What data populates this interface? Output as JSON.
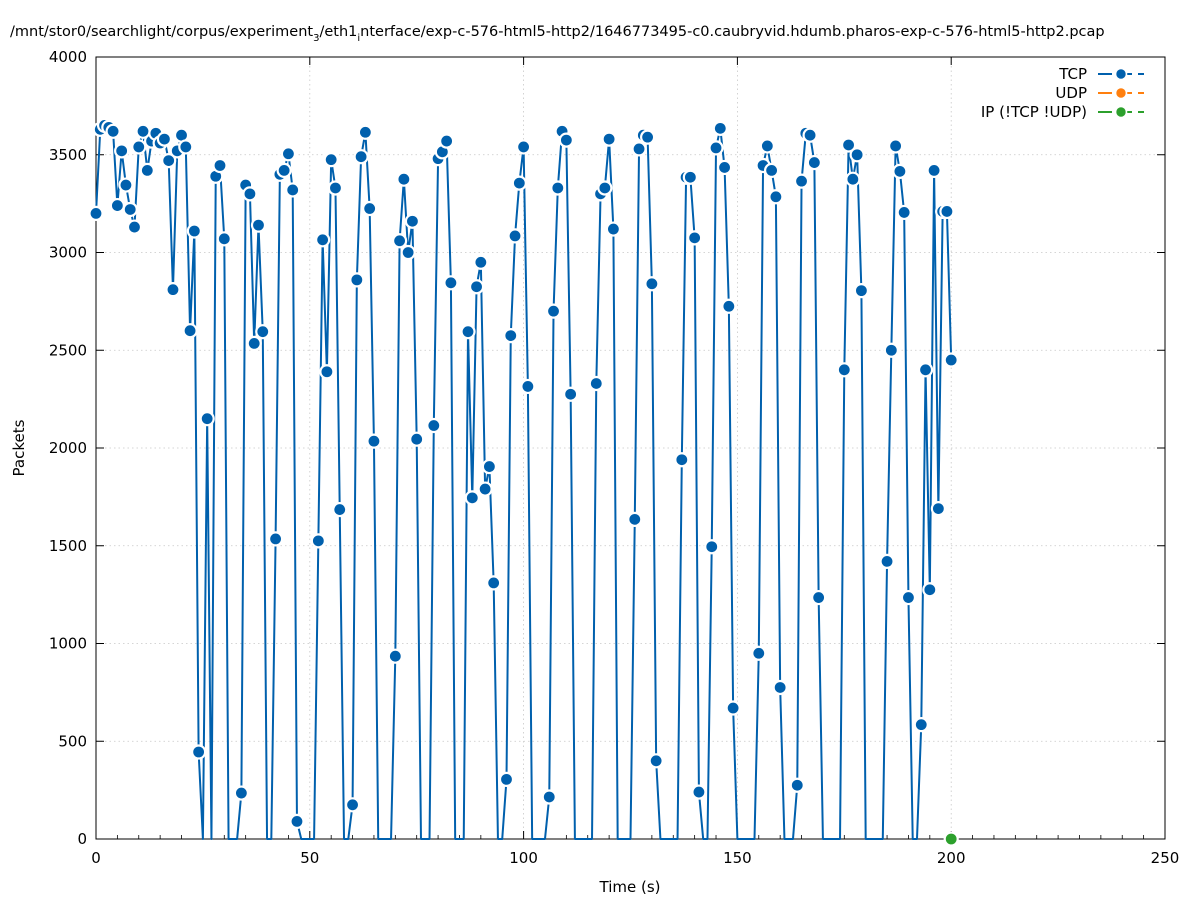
{
  "chart_data": {
    "type": "line",
    "title": "/mnt/stor0/searchlight/corpus/experiment_3/eth1_interface/exp-c-576-html5-http2/1646773495-c0.caubryvid.hdumb.pharos-exp-c-576-html5-http2.pcap",
    "title_parts": {
      "p1": "/mnt/stor0/searchlight/corpus/experiment",
      "sub1": "3",
      "p2": "/eth1",
      "sub2": "i",
      "p3": "nterface/exp-c-576-html5-http2/1646773495-c0.caubryvid.hdumb.pharos-exp-c-576-html5-http2.pcap"
    },
    "xlabel": "Time (s)",
    "ylabel": "Packets",
    "xlim": [
      0,
      250
    ],
    "ylim": [
      0,
      4000
    ],
    "xticks": [
      "0",
      "50",
      "100",
      "150",
      "200",
      "250"
    ],
    "yticks": [
      "0",
      "500",
      "1000",
      "1500",
      "2000",
      "2500",
      "3000",
      "3500",
      "4000"
    ],
    "grid": true,
    "legend_position": "top-right",
    "series": [
      {
        "name": "TCP",
        "color": "#0060ad",
        "values": [
          [
            0,
            3200
          ],
          [
            1,
            3630
          ],
          [
            2,
            3650
          ],
          [
            3,
            3640
          ],
          [
            4,
            3620
          ],
          [
            5,
            3240
          ],
          [
            6,
            3520
          ],
          [
            7,
            3345
          ],
          [
            8,
            3220
          ],
          [
            9,
            3130
          ],
          [
            10,
            3540
          ],
          [
            11,
            3620
          ],
          [
            12,
            3420
          ],
          [
            13,
            3570
          ],
          [
            14,
            3610
          ],
          [
            15,
            3560
          ],
          [
            16,
            3580
          ],
          [
            17,
            3470
          ],
          [
            18,
            2810
          ],
          [
            19,
            3520
          ],
          [
            20,
            3600
          ],
          [
            21,
            3540
          ],
          [
            22,
            2600
          ],
          [
            23,
            3110
          ],
          [
            24,
            445
          ],
          [
            25,
            0
          ],
          [
            26,
            2150
          ],
          [
            27,
            0
          ],
          [
            28,
            3390
          ],
          [
            29,
            3445
          ],
          [
            30,
            3070
          ],
          [
            31,
            0
          ],
          [
            32,
            0
          ],
          [
            33,
            0
          ],
          [
            34,
            235
          ],
          [
            35,
            3345
          ],
          [
            36,
            3300
          ],
          [
            37,
            2535
          ],
          [
            38,
            3140
          ],
          [
            39,
            2595
          ],
          [
            40,
            0
          ],
          [
            41,
            0
          ],
          [
            42,
            1535
          ],
          [
            43,
            3400
          ],
          [
            44,
            3420
          ],
          [
            45,
            3505
          ],
          [
            46,
            3320
          ],
          [
            47,
            90
          ],
          [
            48,
            0
          ],
          [
            49,
            0
          ],
          [
            50,
            0
          ],
          [
            51,
            0
          ],
          [
            52,
            1525
          ],
          [
            53,
            3065
          ],
          [
            54,
            2390
          ],
          [
            55,
            3475
          ],
          [
            56,
            3330
          ],
          [
            57,
            1685
          ],
          [
            58,
            0
          ],
          [
            59,
            0
          ],
          [
            60,
            175
          ],
          [
            61,
            2860
          ],
          [
            62,
            3490
          ],
          [
            63,
            3615
          ],
          [
            64,
            3225
          ],
          [
            65,
            2035
          ],
          [
            66,
            0
          ],
          [
            67,
            0
          ],
          [
            68,
            0
          ],
          [
            69,
            0
          ],
          [
            70,
            935
          ],
          [
            71,
            3060
          ],
          [
            72,
            3375
          ],
          [
            73,
            3000
          ],
          [
            74,
            3160
          ],
          [
            75,
            2045
          ],
          [
            76,
            0
          ],
          [
            77,
            0
          ],
          [
            78,
            0
          ],
          [
            79,
            2115
          ],
          [
            80,
            3480
          ],
          [
            81,
            3515
          ],
          [
            82,
            3570
          ],
          [
            83,
            2845
          ],
          [
            84,
            0
          ],
          [
            85,
            0
          ],
          [
            86,
            0
          ],
          [
            87,
            2595
          ],
          [
            88,
            1745
          ],
          [
            89,
            2825
          ],
          [
            90,
            2950
          ],
          [
            91,
            1790
          ],
          [
            92,
            1905
          ],
          [
            93,
            1310
          ],
          [
            94,
            0
          ],
          [
            95,
            0
          ],
          [
            96,
            305
          ],
          [
            97,
            2575
          ],
          [
            98,
            3085
          ],
          [
            99,
            3355
          ],
          [
            100,
            3540
          ],
          [
            101,
            2315
          ],
          [
            102,
            0
          ],
          [
            103,
            0
          ],
          [
            104,
            0
          ],
          [
            105,
            0
          ],
          [
            106,
            215
          ],
          [
            107,
            2700
          ],
          [
            108,
            3330
          ],
          [
            109,
            3620
          ],
          [
            110,
            3575
          ],
          [
            111,
            2275
          ],
          [
            112,
            0
          ],
          [
            113,
            0
          ],
          [
            114,
            0
          ],
          [
            115,
            0
          ],
          [
            116,
            0
          ],
          [
            117,
            2330
          ],
          [
            118,
            3300
          ],
          [
            119,
            3330
          ],
          [
            120,
            3580
          ],
          [
            121,
            3120
          ],
          [
            122,
            0
          ],
          [
            123,
            0
          ],
          [
            124,
            0
          ],
          [
            125,
            0
          ],
          [
            126,
            1635
          ],
          [
            127,
            3530
          ],
          [
            128,
            3600
          ],
          [
            129,
            3590
          ],
          [
            130,
            2840
          ],
          [
            131,
            400
          ],
          [
            132,
            0
          ],
          [
            133,
            0
          ],
          [
            134,
            0
          ],
          [
            135,
            0
          ],
          [
            136,
            0
          ],
          [
            137,
            1940
          ],
          [
            138,
            3385
          ],
          [
            139,
            3385
          ],
          [
            140,
            3075
          ],
          [
            141,
            240
          ],
          [
            142,
            0
          ],
          [
            143,
            0
          ],
          [
            144,
            1495
          ],
          [
            145,
            3535
          ],
          [
            146,
            3635
          ],
          [
            147,
            3435
          ],
          [
            148,
            2725
          ],
          [
            149,
            670
          ],
          [
            150,
            0
          ],
          [
            151,
            0
          ],
          [
            152,
            0
          ],
          [
            153,
            0
          ],
          [
            154,
            0
          ],
          [
            155,
            950
          ],
          [
            156,
            3445
          ],
          [
            157,
            3545
          ],
          [
            158,
            3420
          ],
          [
            159,
            3285
          ],
          [
            160,
            775
          ],
          [
            161,
            0
          ],
          [
            162,
            0
          ],
          [
            163,
            0
          ],
          [
            164,
            275
          ],
          [
            165,
            3365
          ],
          [
            166,
            3610
          ],
          [
            167,
            3600
          ],
          [
            168,
            3460
          ],
          [
            169,
            1235
          ],
          [
            170,
            0
          ],
          [
            171,
            0
          ],
          [
            172,
            0
          ],
          [
            173,
            0
          ],
          [
            174,
            0
          ],
          [
            175,
            2400
          ],
          [
            176,
            3550
          ],
          [
            177,
            3375
          ],
          [
            178,
            3500
          ],
          [
            179,
            2805
          ],
          [
            180,
            0
          ],
          [
            181,
            0
          ],
          [
            182,
            0
          ],
          [
            183,
            0
          ],
          [
            184,
            0
          ],
          [
            185,
            1420
          ],
          [
            186,
            2500
          ],
          [
            187,
            3545
          ],
          [
            188,
            3415
          ],
          [
            189,
            3205
          ],
          [
            190,
            1235
          ],
          [
            191,
            0
          ],
          [
            192,
            0
          ],
          [
            193,
            585
          ],
          [
            194,
            2400
          ],
          [
            195,
            1275
          ],
          [
            196,
            3420
          ],
          [
            197,
            1690
          ],
          [
            198,
            3210
          ],
          [
            199,
            3210
          ],
          [
            200,
            2450
          ]
        ]
      },
      {
        "name": "UDP",
        "color": "#ff7f0e",
        "values": []
      },
      {
        "name": "IP (!TCP  !UDP)",
        "color": "#2ca02c",
        "values": [
          [
            200,
            0
          ]
        ]
      }
    ]
  }
}
